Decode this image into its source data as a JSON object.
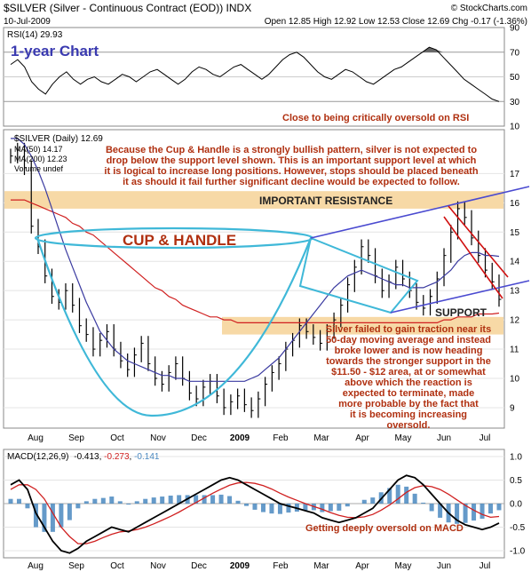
{
  "header": {
    "symbol_line": "$SILVER (Silver - Continuous Contract (EOD)) INDX",
    "watermark": "© StockCharts.com",
    "date": "10-Jul-2009",
    "quote_line": "Open 12.85  High 12.92  Low 12.53  Close 12.69  Chg -0.17 (-1.36%)"
  },
  "colors": {
    "price": "#000000",
    "ma50": "#3a3aa0",
    "ma200": "#d02020",
    "cup": "#3fb8d8",
    "channel": "#4a4ad0",
    "downtrend": "#d01010",
    "band": "#f7d9a6",
    "annotation": "#b03010",
    "macd_hist": "#4a88c0"
  },
  "chart_data": [
    {
      "type": "line",
      "panel": "rsi",
      "legend": "RSI(14) 29.93",
      "title_label": "1-year Chart",
      "y_ticks": [
        90,
        70,
        50,
        30,
        10
      ],
      "overbought": 70,
      "oversold": 30,
      "ylim": [
        10,
        90
      ],
      "values": [
        60,
        64,
        58,
        46,
        40,
        36,
        44,
        50,
        54,
        48,
        44,
        48,
        50,
        46,
        44,
        48,
        52,
        50,
        46,
        50,
        54,
        56,
        52,
        48,
        44,
        48,
        54,
        58,
        56,
        52,
        50,
        54,
        58,
        60,
        56,
        52,
        48,
        52,
        58,
        64,
        68,
        70,
        66,
        60,
        54,
        50,
        48,
        52,
        56,
        54,
        50,
        46,
        44,
        48,
        52,
        56,
        58,
        62,
        66,
        70,
        74,
        72,
        66,
        60,
        54,
        48,
        44,
        40,
        36,
        32,
        30
      ],
      "annotation": "Close to being critically oversold on RSI"
    },
    {
      "type": "line",
      "panel": "price",
      "legend": [
        "$SILVER (Daily) 12.69",
        "MA(50) 14.17",
        "MA(200) 12.23",
        "Volume undef"
      ],
      "x_labels": [
        "Aug",
        "Sep",
        "Oct",
        "Nov",
        "Dec",
        "2009",
        "Feb",
        "Mar",
        "Apr",
        "May",
        "Jun",
        "Jul"
      ],
      "y_ticks": [
        17,
        16,
        15,
        14,
        13,
        12,
        11,
        10,
        9
      ],
      "ylim": [
        8.3,
        18.5
      ],
      "price": [
        17.6,
        17.8,
        17.2,
        15.2,
        14.5,
        13.5,
        12.8,
        12.6,
        13,
        12.5,
        11.8,
        11.5,
        11,
        11.3,
        11.6,
        11,
        10.6,
        10.3,
        10.8,
        11.2,
        10.5,
        10,
        9.8,
        10.2,
        10.5,
        10,
        9.5,
        9.3,
        9.7,
        9.9,
        9.4,
        9,
        9.2,
        9.4,
        9.1,
        8.9,
        9.3,
        9.8,
        10.2,
        10.5,
        11,
        11.3,
        11.8,
        11.6,
        11.4,
        11.2,
        11.6,
        12,
        12.5,
        13.2,
        13.8,
        14.5,
        14.2,
        13.5,
        13,
        13.3,
        13.8,
        13.4,
        13,
        12.6,
        12.4,
        12.8,
        13.4,
        14.2,
        15,
        15.8,
        15.5,
        14.8,
        14.2,
        13.7,
        13.3,
        12.7
      ],
      "ma50": [
        18.2,
        18.2,
        18,
        17.6,
        17.1,
        16.5,
        15.8,
        15.1,
        14.4,
        13.8,
        13.2,
        12.6,
        12.1,
        11.6,
        11.3,
        11,
        10.8,
        10.6,
        10.5,
        10.4,
        10.3,
        10.2,
        10.1,
        10.1,
        10,
        10,
        9.9,
        9.9,
        9.9,
        9.9,
        9.9,
        9.9,
        9.9,
        9.9,
        9.9,
        10,
        10.1,
        10.3,
        10.5,
        10.7,
        11,
        11.3,
        11.6,
        11.9,
        12.2,
        12.5,
        12.8,
        13.1,
        13.3,
        13.5,
        13.6,
        13.7,
        13.6,
        13.5,
        13.4,
        13.3,
        13.2,
        13.2,
        13.1,
        13.1,
        13.1,
        13.2,
        13.3,
        13.5,
        13.7,
        14,
        14.2,
        14.3,
        14.3,
        14.2,
        14.2,
        14.17
      ],
      "ma200": [
        16.1,
        16.1,
        16.1,
        16,
        15.9,
        15.8,
        15.7,
        15.6,
        15.5,
        15.3,
        15.2,
        15,
        14.9,
        14.7,
        14.5,
        14.3,
        14.1,
        13.9,
        13.7,
        13.5,
        13.3,
        13.1,
        13,
        12.8,
        12.7,
        12.5,
        12.4,
        12.3,
        12.2,
        12.1,
        12.1,
        12,
        12,
        11.9,
        11.9,
        11.9,
        11.9,
        11.9,
        11.9,
        11.9,
        11.9,
        11.9,
        11.9,
        11.9,
        11.9,
        11.9,
        11.9,
        11.9,
        11.9,
        11.9,
        11.9,
        11.9,
        11.9,
        11.9,
        11.9,
        11.9,
        11.9,
        11.9,
        11.9,
        11.9,
        11.9,
        11.9,
        11.9,
        12,
        12,
        12.1,
        12.1,
        12.1,
        12.2,
        12.2,
        12.2,
        12.23
      ],
      "resistance_band": [
        15.8,
        16.4
      ],
      "support_band": [
        11.5,
        12.1
      ],
      "labels": {
        "resistance": "IMPORTANT RESISTANCE",
        "support": "SUPPORT",
        "pattern": "CUP & HANDLE"
      },
      "annotation_top": [
        "Because the Cup & Handle is a strongly bullish pattern, silver is not expected to",
        "drop below the support level shown. This is an important support level at which",
        "it is logical to increase long positions. However, stops should be placed beneath",
        "it as should it fail further significant decline would be expected to follow."
      ],
      "annotation_bottom": [
        "Silver failed to gain traction near its",
        "50-day moving average and instead",
        "broke lower and is now heading",
        "towards the stronger support in the",
        "$11.50 - $12 area, at or somewhat",
        "above which the reaction is",
        "expected to terminate, made",
        "more probable by the fact that",
        "it is becoming increasing",
        "oversold."
      ]
    },
    {
      "type": "line",
      "panel": "macd",
      "legend": {
        "label": "MACD(12,26,9)",
        "macd": "-0.413",
        "signal": "-0.273",
        "hist": "-0.141"
      },
      "x_labels": [
        "Aug",
        "Sep",
        "Oct",
        "Nov",
        "Dec",
        "2009",
        "Feb",
        "Mar",
        "Apr",
        "May",
        "Jun",
        "Jul"
      ],
      "y_ticks": [
        "1.0",
        "0.5",
        "0.0",
        "-0.5",
        "-1.0"
      ],
      "ylim": [
        -1.15,
        1.15
      ],
      "macd": [
        0.4,
        0.5,
        0.3,
        -0.2,
        -0.5,
        -0.8,
        -1,
        -1.05,
        -0.95,
        -0.8,
        -0.7,
        -0.6,
        -0.5,
        -0.55,
        -0.6,
        -0.5,
        -0.4,
        -0.3,
        -0.2,
        -0.1,
        0,
        0.1,
        0.2,
        0.3,
        0.4,
        0.5,
        0.55,
        0.5,
        0.4,
        0.3,
        0.2,
        0.1,
        0,
        -0.05,
        -0.1,
        -0.15,
        -0.2,
        -0.3,
        -0.35,
        -0.4,
        -0.35,
        -0.3,
        -0.2,
        -0.1,
        0.1,
        0.3,
        0.5,
        0.6,
        0.55,
        0.4,
        0.2,
        0,
        -0.2,
        -0.35,
        -0.45,
        -0.5,
        -0.55,
        -0.5,
        -0.413
      ],
      "signal": [
        0.3,
        0.4,
        0.4,
        0.3,
        0.1,
        -0.2,
        -0.5,
        -0.7,
        -0.85,
        -0.85,
        -0.8,
        -0.72,
        -0.65,
        -0.6,
        -0.58,
        -0.55,
        -0.5,
        -0.43,
        -0.35,
        -0.27,
        -0.18,
        -0.08,
        0.02,
        0.12,
        0.22,
        0.31,
        0.39,
        0.44,
        0.45,
        0.43,
        0.38,
        0.31,
        0.22,
        0.14,
        0.07,
        0,
        -0.06,
        -0.12,
        -0.19,
        -0.25,
        -0.29,
        -0.3,
        -0.28,
        -0.23,
        -0.14,
        -0.03,
        0.1,
        0.24,
        0.34,
        0.38,
        0.36,
        0.3,
        0.2,
        0.08,
        -0.04,
        -0.14,
        -0.23,
        -0.29,
        -0.273
      ],
      "annotation": "Getting deeply oversold on MACD"
    }
  ]
}
